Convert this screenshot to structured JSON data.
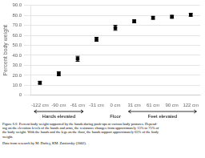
{
  "chart_data": {
    "type": "scatter",
    "categories": [
      "-122 cm",
      "-90 cm",
      "-61 cm",
      "-31 cm",
      "0 cm",
      "31 cm",
      "61 cm",
      "90 cm",
      "122 cm"
    ],
    "values": [
      12.5,
      21.5,
      36.5,
      56.0,
      67.5,
      74.0,
      77.5,
      78.5,
      80.5
    ],
    "errors": [
      1.5,
      2.0,
      2.5,
      2.0,
      2.5,
      1.5,
      1.5,
      1.5,
      1.5
    ],
    "ylabel": "Percent body weight",
    "ylim": [
      0,
      90
    ],
    "yticks": [
      0,
      {
        "value": 10,
        "label": "10.0"
      },
      {
        "value": 20,
        "label": "20.0"
      },
      {
        "value": 30,
        "label": "30.0"
      },
      {
        "value": 40,
        "label": "40.0"
      },
      {
        "value": 50,
        "label": "50.0"
      },
      {
        "value": 60,
        "label": "60.0"
      },
      {
        "value": 70,
        "label": "70.0"
      },
      {
        "value": 80,
        "label": "80.0"
      },
      {
        "value": 90,
        "label": "90.0"
      }
    ],
    "grid": "y",
    "marker": "square",
    "color": "black",
    "annotations": [
      "Hands elevated",
      "Floor",
      "Feet elevated"
    ],
    "caption": "Figure 6.6  Percent body weight supported by the hands during push-ups at various body postures. Depend-\ning on the elevation levels of the hands and arms, the resistance changes from approximately 15% to 75% of\nthe body weight. With the hands and the legs on the floor, the hands support approximately 65% of the body\nweight.",
    "source": "Data from research by M. Duffey, KM. Zatsiorsky (2002)."
  }
}
